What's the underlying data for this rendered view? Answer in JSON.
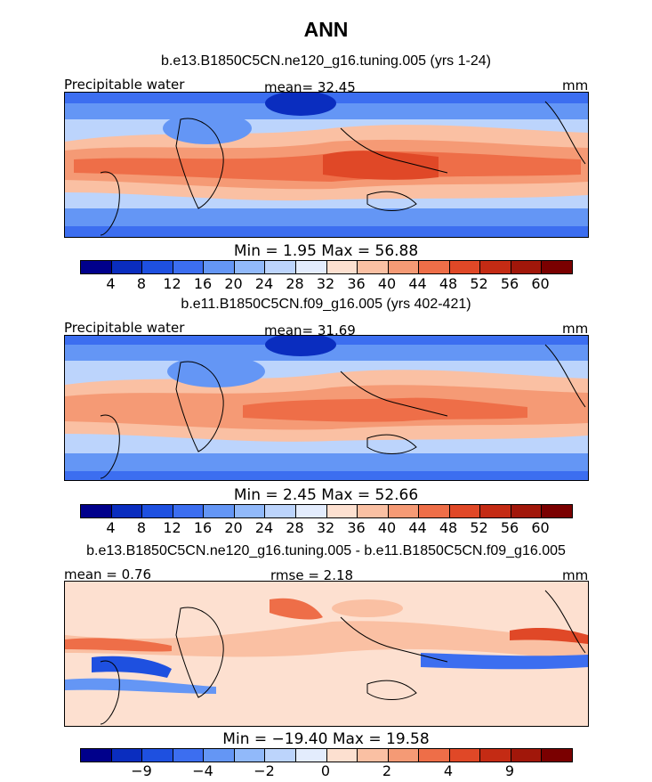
{
  "chart_data": [
    {
      "type": "heatmap",
      "title": "ANN",
      "subtitle": "b.e13.B1850C5CN.ne120_g16.tuning.005 (yrs 1-24)",
      "left_label": "Precipitable water",
      "center_label": "mean=  32.45",
      "units": "mm",
      "min_max_text": "Min =    1.95 Max =   56.88",
      "mean": 32.45,
      "min": 1.95,
      "max": 56.88,
      "colorbar": {
        "colors": [
          "#00008b",
          "#0a2dbf",
          "#1e50e0",
          "#3c6ef0",
          "#6496f5",
          "#91b9fa",
          "#bcd4fc",
          "#e3ecfd",
          "#fde0d0",
          "#fac0a3",
          "#f59a75",
          "#ee6e48",
          "#e04827",
          "#c42b14",
          "#a1170a",
          "#7a0000"
        ],
        "ticks": [
          "4",
          "8",
          "12",
          "16",
          "20",
          "24",
          "28",
          "32",
          "36",
          "40",
          "44",
          "48",
          "52",
          "56",
          "60"
        ]
      }
    },
    {
      "type": "heatmap",
      "subtitle": "b.e11.B1850C5CN.f09_g16.005 (yrs 402-421)",
      "left_label": "Precipitable water",
      "center_label": "mean=  31.69",
      "units": "mm",
      "min_max_text": "Min =    2.45 Max =   52.66",
      "mean": 31.69,
      "min": 2.45,
      "max": 52.66,
      "colorbar": {
        "colors": [
          "#00008b",
          "#0a2dbf",
          "#1e50e0",
          "#3c6ef0",
          "#6496f5",
          "#91b9fa",
          "#bcd4fc",
          "#e3ecfd",
          "#fde0d0",
          "#fac0a3",
          "#f59a75",
          "#ee6e48",
          "#e04827",
          "#c42b14",
          "#a1170a",
          "#7a0000"
        ],
        "ticks": [
          "4",
          "8",
          "12",
          "16",
          "20",
          "24",
          "28",
          "32",
          "36",
          "40",
          "44",
          "48",
          "52",
          "56",
          "60"
        ]
      }
    },
    {
      "type": "heatmap",
      "subtitle": "b.e13.B1850C5CN.ne120_g16.tuning.005 - b.e11.B1850C5CN.f09_g16.005",
      "left_label": "mean =   0.76",
      "center_label": "rmse =   2.18",
      "units": "mm",
      "min_max_text": "Min = −19.40 Max =   19.58",
      "mean": 0.76,
      "rmse": 2.18,
      "min": -19.4,
      "max": 19.58,
      "colorbar": {
        "colors": [
          "#00008b",
          "#0a2dbf",
          "#1e50e0",
          "#3c6ef0",
          "#6496f5",
          "#91b9fa",
          "#bcd4fc",
          "#e3ecfd",
          "#fde0d0",
          "#fac0a3",
          "#f59a75",
          "#ee6e48",
          "#e04827",
          "#c42b14",
          "#a1170a",
          "#7a0000"
        ],
        "ticks": [
          "−9",
          "−4",
          "−2",
          "0",
          "2",
          "4",
          "9"
        ]
      }
    }
  ]
}
